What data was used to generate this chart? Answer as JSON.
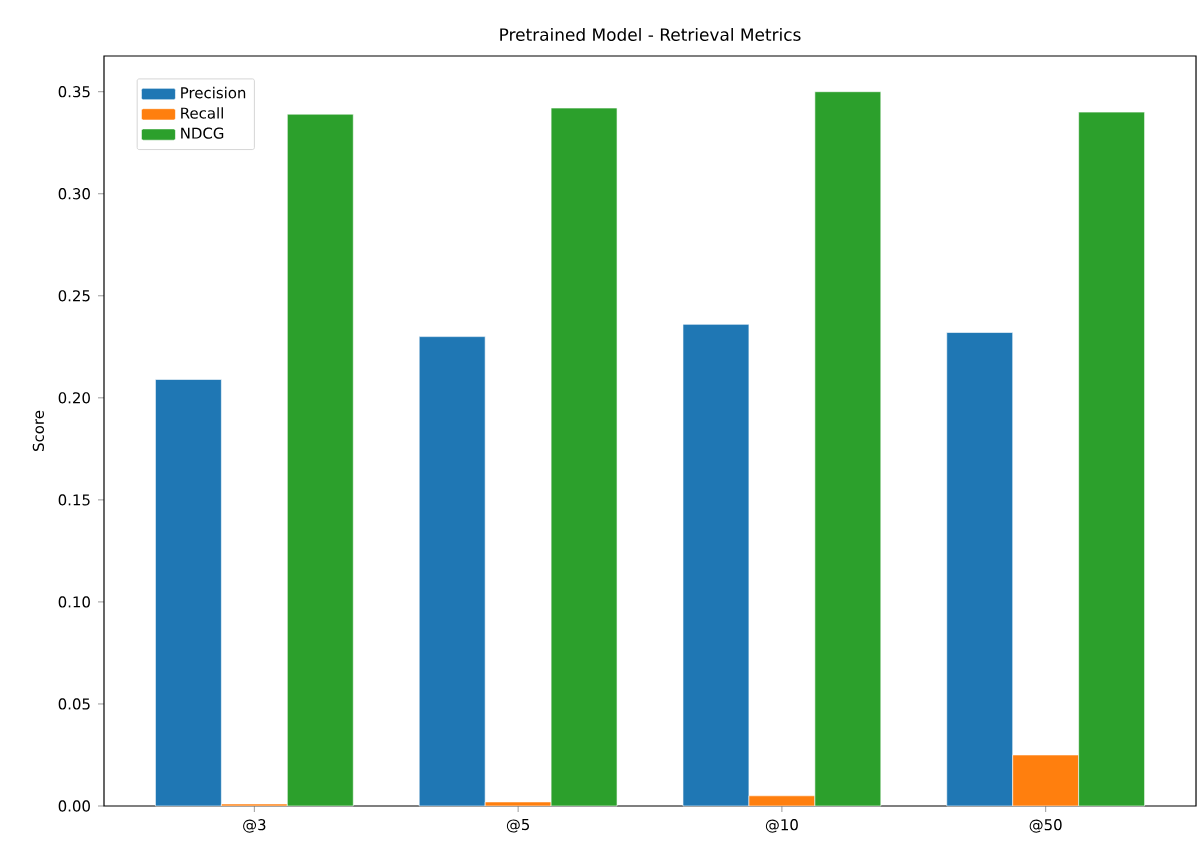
{
  "chart_data": {
    "type": "bar",
    "title": "Pretrained Model - Retrieval Metrics",
    "ylabel": "Score",
    "categories": [
      "@3",
      "@5",
      "@10",
      "@50"
    ],
    "series": [
      {
        "name": "Precision",
        "color": "#1f77b4",
        "values": [
          0.209,
          0.23,
          0.236,
          0.232
        ]
      },
      {
        "name": "Recall",
        "color": "#ff7f0e",
        "values": [
          0.001,
          0.002,
          0.005,
          0.025
        ]
      },
      {
        "name": "NDCG",
        "color": "#2ca02c",
        "values": [
          0.339,
          0.342,
          0.35,
          0.34
        ]
      }
    ],
    "ylim": [
      0,
      0.3675
    ],
    "yticks": [
      {
        "value": 0,
        "label": "0.00"
      },
      {
        "value": 0.05,
        "label": "0.05"
      },
      {
        "value": 0.1,
        "label": "0.10"
      },
      {
        "value": 0.15,
        "label": "0.15"
      },
      {
        "value": 0.2,
        "label": "0.20"
      },
      {
        "value": 0.25,
        "label": "0.25"
      },
      {
        "value": 0.3,
        "label": "0.30"
      },
      {
        "value": 0.35,
        "label": "0.35"
      }
    ],
    "legend": "top left",
    "grid": false
  }
}
